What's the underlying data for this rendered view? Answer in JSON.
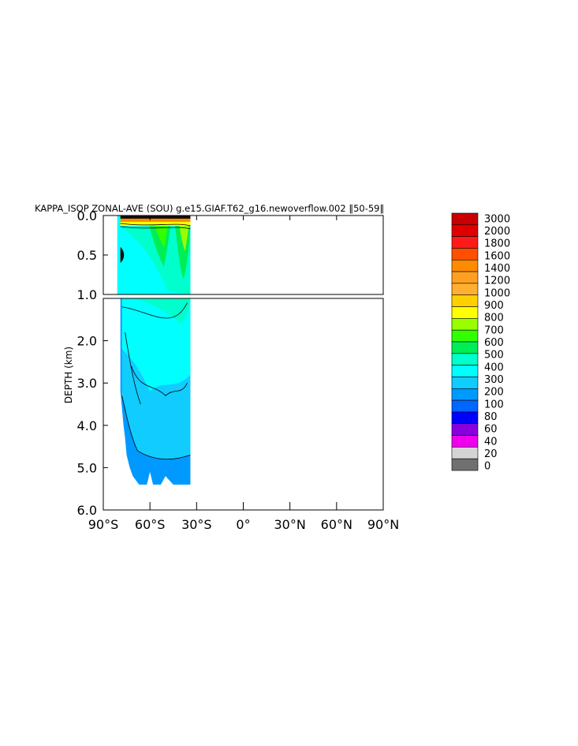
{
  "chart_data": {
    "type": "heatmap",
    "title": "KAPPA_ISOP ZONAL-AVE (SOU) g.e15.GIAF.T62_g16.newoverflow.002 ‖50-59‖",
    "ylabel": "DEPTH (km)",
    "xlabel": "",
    "x_ticks": [
      "90°S",
      "60°S",
      "30°S",
      "0°",
      "30°N",
      "60°N",
      "90°N"
    ],
    "x_tick_values": [
      -90,
      -60,
      -30,
      0,
      30,
      60,
      90
    ],
    "xlim": [
      -90,
      90
    ],
    "upper_panel": {
      "ylim": [
        0.0,
        1.0
      ],
      "y_ticks": [
        "0.0",
        "0.5",
        "1.0"
      ],
      "y_tick_values": [
        0.0,
        0.5,
        1.0
      ]
    },
    "lower_panel": {
      "ylim": [
        1.0,
        6.0
      ],
      "y_ticks": [
        "2.0",
        "3.0",
        "4.0",
        "5.0",
        "6.0"
      ],
      "y_tick_values": [
        2.0,
        3.0,
        4.0,
        5.0,
        6.0
      ]
    },
    "data_extent": {
      "lat_min": -79,
      "lat_max": -34,
      "depth_max": 5.4
    },
    "colorbar": {
      "levels": [
        "3000",
        "2000",
        "1800",
        "1600",
        "1400",
        "1200",
        "1000",
        "900",
        "800",
        "700",
        "600",
        "500",
        "400",
        "300",
        "200",
        "100",
        "80",
        "60",
        "40",
        "20",
        "0"
      ],
      "colors": [
        "#c80000",
        "#e00000",
        "#ff1a1a",
        "#ff4f00",
        "#ff8c00",
        "#ffa020",
        "#ffb030",
        "#ffd000",
        "#ffff00",
        "#99ff00",
        "#33ff00",
        "#00ee55",
        "#00ffcc",
        "#00ffff",
        "#11ccff",
        "#0099ff",
        "#0066ff",
        "#0000ff",
        "#8800dd",
        "#ee00ee",
        "#d4d4d4",
        "#707070"
      ]
    }
  }
}
